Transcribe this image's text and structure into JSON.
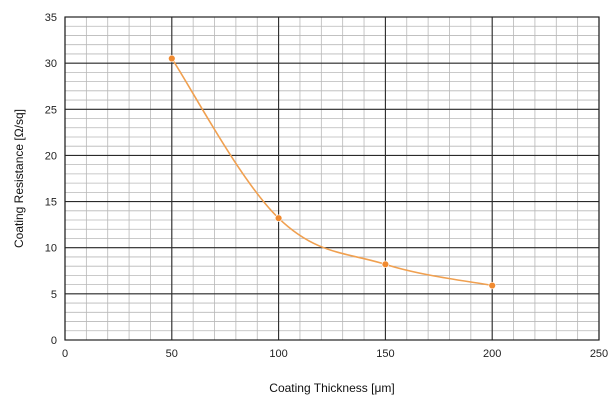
{
  "chart_data": {
    "type": "line",
    "title": "",
    "xlabel": "Coating Thickness [μm]",
    "ylabel": "Coating Resistance [Ω/sq]",
    "xlim": [
      0,
      250
    ],
    "ylim": [
      0,
      35
    ],
    "xticks": [
      0,
      50,
      100,
      150,
      200,
      250
    ],
    "yticks": [
      0,
      5,
      10,
      15,
      20,
      25,
      30,
      35
    ],
    "grid": true,
    "minor_grid": true,
    "series": [
      {
        "x": [
          50,
          100,
          150,
          200
        ],
        "y": [
          30.5,
          13.2,
          8.2,
          5.9
        ],
        "color": "#f0a050",
        "marker_color": "#f08a30"
      }
    ]
  }
}
